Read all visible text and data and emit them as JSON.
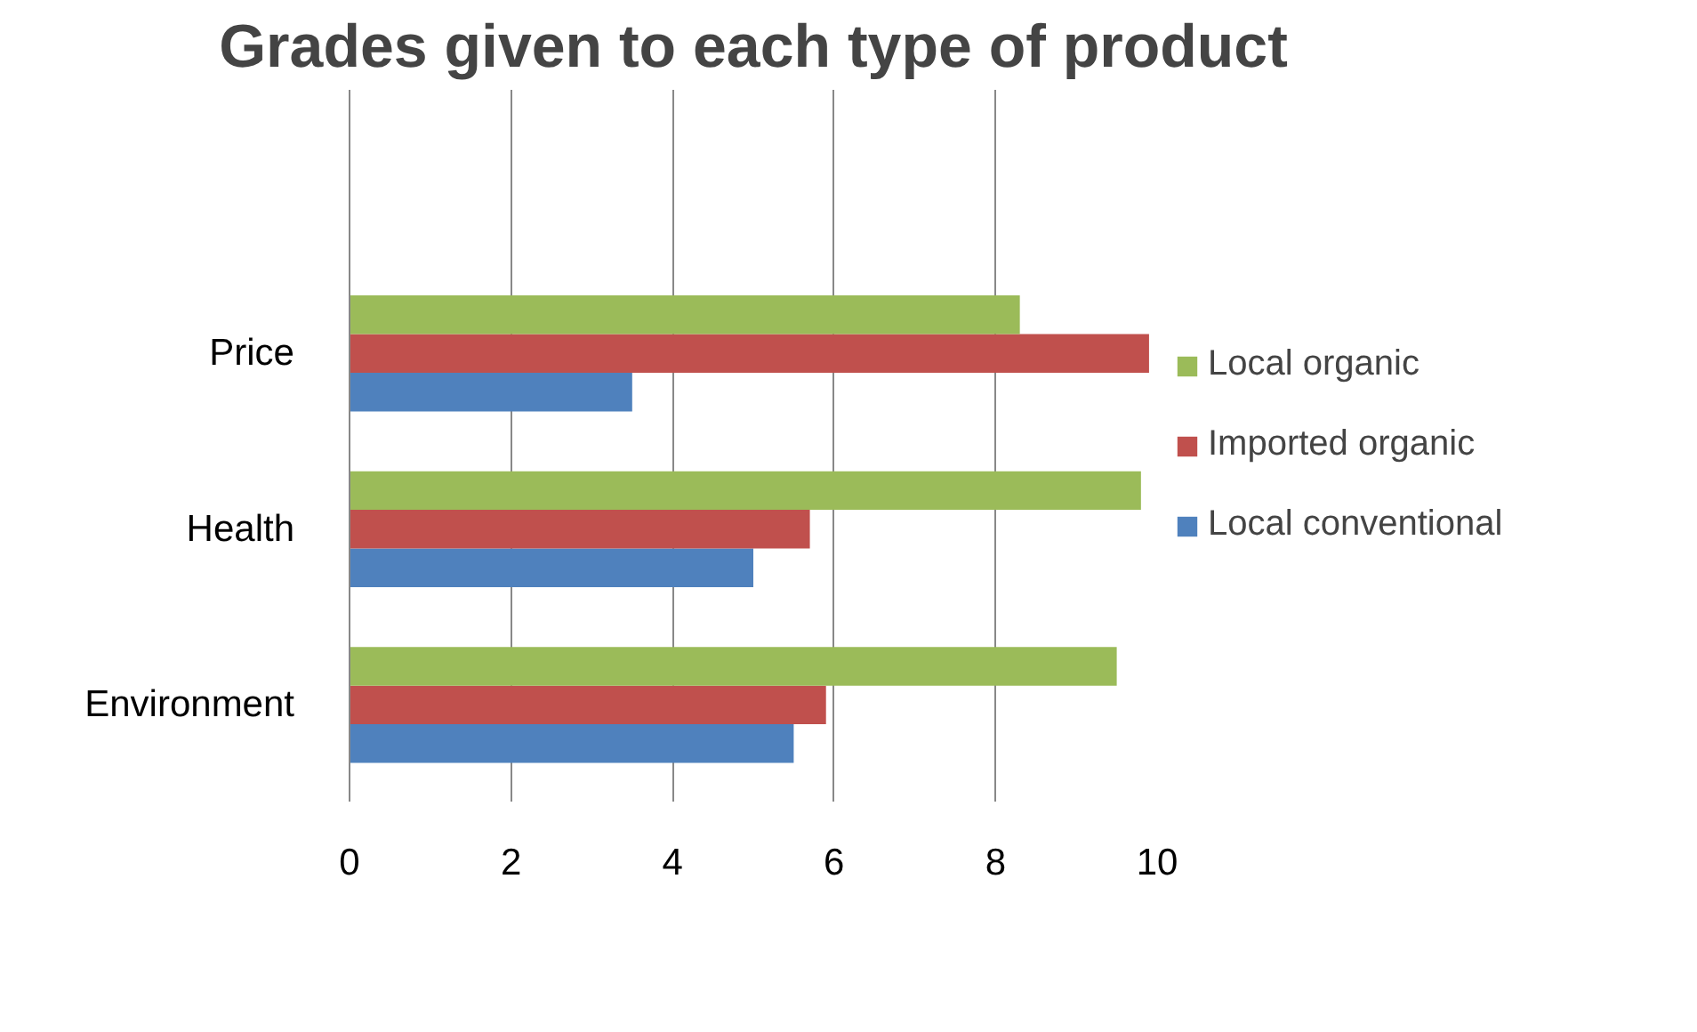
{
  "chart_data": {
    "type": "bar",
    "orientation": "horizontal",
    "title": "Grades given to each type of product",
    "categories": [
      "Price",
      "Health",
      "Environment"
    ],
    "series": [
      {
        "name": "Local conventional",
        "color": "#4f81bd",
        "values": [
          3.5,
          5.0,
          5.5
        ]
      },
      {
        "name": "Imported organic",
        "color": "#c0504d",
        "values": [
          9.9,
          5.7,
          5.9
        ]
      },
      {
        "name": "Local organic",
        "color": "#9bbb59",
        "values": [
          8.3,
          9.8,
          9.5
        ]
      }
    ],
    "xlim": [
      0,
      10
    ],
    "xticks": [
      0,
      2,
      4,
      6,
      8,
      10
    ],
    "grid": "x",
    "legend": "right"
  }
}
